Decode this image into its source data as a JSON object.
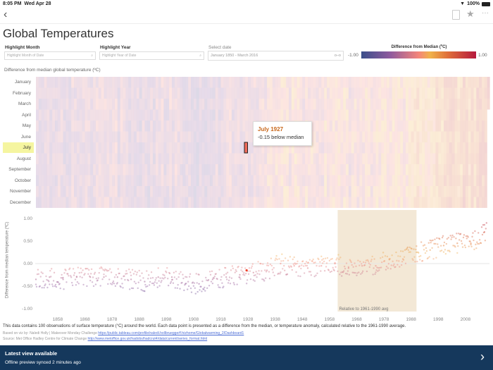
{
  "status_bar": {
    "time": "8:05 PM",
    "date": "Wed Apr 28",
    "battery": "100%"
  },
  "nav": {
    "back_icon": "chevron-left-icon",
    "icons": [
      "comment-icon",
      "star-icon",
      "more-icon"
    ]
  },
  "title": "Global Temperatures",
  "filters": {
    "highlight_month": {
      "label": "Highlight Month",
      "placeholder": "Highlight Month of Date"
    },
    "highlight_year": {
      "label": "Highlight Year",
      "placeholder": "Highlight Year of Date"
    },
    "select_date": {
      "label": "Select date",
      "value": "January 1850 - March 2016"
    }
  },
  "legend": {
    "title": "Difference from Median (ºC)",
    "min": "-1.00",
    "max": "1.00",
    "colors": [
      "#3b4f8a",
      "#8e5a9e",
      "#f4857a",
      "#f0b24a",
      "#e0703a",
      "#b5193d"
    ]
  },
  "heatmap": {
    "title": "Difference from median global temperature (ºC)",
    "months": [
      "January",
      "February",
      "March",
      "April",
      "May",
      "June",
      "July",
      "August",
      "September",
      "October",
      "November",
      "December"
    ],
    "highlighted_month": "July",
    "highlight_color": "#f5f5a0"
  },
  "tooltip": {
    "title": "July 1927",
    "text": "-0.15 below median"
  },
  "chart_data": {
    "type": "scatter",
    "ylabel": "Difference from median temperature (ºC)",
    "ylim": [
      -1,
      1
    ],
    "yticks": [
      "1.00",
      "0.50",
      "0.00",
      "-0.50",
      "-1.00"
    ],
    "xticks": [
      "1858",
      "1868",
      "1878",
      "1888",
      "1898",
      "1908",
      "1918",
      "1928",
      "1938",
      "1948",
      "1958",
      "1968",
      "1978",
      "1988",
      "1998",
      "2008"
    ],
    "x": [
      1850,
      1855,
      1860,
      1865,
      1870,
      1875,
      1880,
      1885,
      1890,
      1895,
      1900,
      1905,
      1910,
      1915,
      1920,
      1925,
      1930,
      1935,
      1940,
      1945,
      1950,
      1955,
      1960,
      1965,
      1970,
      1975,
      1980,
      1985,
      1990,
      1995,
      2000,
      2005,
      2010,
      2015
    ],
    "values": [
      -0.35,
      -0.3,
      -0.35,
      -0.3,
      -0.3,
      -0.3,
      -0.3,
      -0.35,
      -0.4,
      -0.3,
      -0.3,
      -0.45,
      -0.45,
      -0.35,
      -0.3,
      -0.25,
      -0.2,
      -0.15,
      0.0,
      -0.05,
      -0.1,
      -0.05,
      0.0,
      -0.1,
      -0.05,
      -0.05,
      0.1,
      0.1,
      0.25,
      0.3,
      0.4,
      0.45,
      0.45,
      0.7
    ],
    "highlighted_point": {
      "label": "July 1927",
      "value": -0.15
    },
    "reference_band": {
      "from": 1961,
      "to": 1990,
      "label": "Relative to 1961-1990 avg"
    }
  },
  "footer": {
    "description": "This data contains 100 observations of surface temperature (°C) around the world. Each data point is presented as a difference from the median, or temperature anomaly, calculated relative to the 1961-1990 average.",
    "credit": "Based on viz by: Naledi Holly | Makeover Monday Challenge",
    "credit_link": "https://public.tableau.com/profile/naledi.hollbruegge#!/vizhome/Globalwarming_2/Dashboard1",
    "source": "Source: Met Office Hadley Centre for Climate Change",
    "source_link": "http://www.metoffice.gov.uk/hadobs/hadcrut4/data/current/series_format.html"
  },
  "banner": {
    "title": "Latest view available",
    "subtitle": "Offline preview synced 2 minutes ago"
  }
}
